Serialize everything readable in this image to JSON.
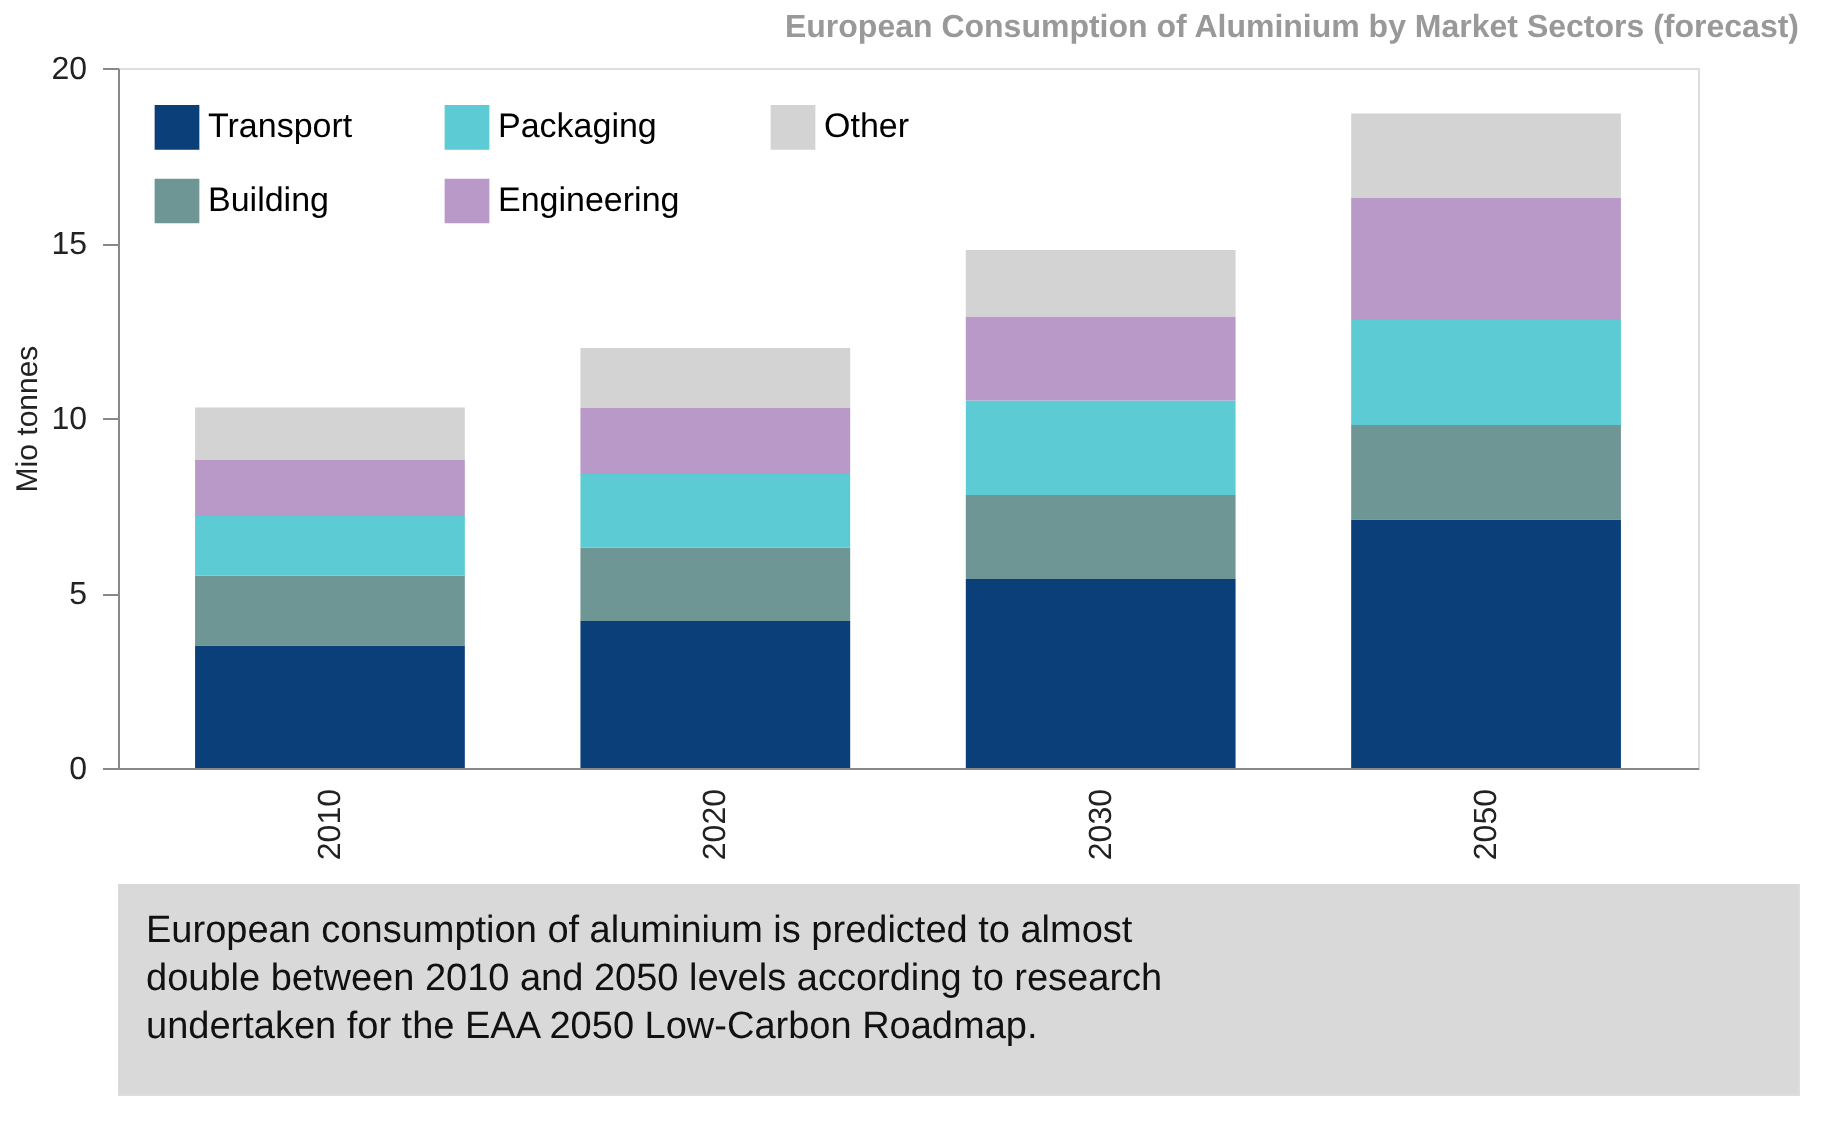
{
  "chart_data": {
    "type": "bar",
    "title": "European Consumption of Aluminium by Market Sectors (forecast)",
    "ylabel": "Mio tonnes",
    "categories": [
      "2010",
      "2020",
      "2030",
      "2050"
    ],
    "stacked": true,
    "series": [
      {
        "name": "Transport",
        "color": "#0b3f7a",
        "values": [
          3.5,
          4.2,
          5.4,
          7.1
        ]
      },
      {
        "name": "Building",
        "color": "#6e9694",
        "values": [
          2.0,
          2.1,
          2.4,
          2.7
        ]
      },
      {
        "name": "Packaging",
        "color": "#5ccbd3",
        "values": [
          1.7,
          2.1,
          2.7,
          3.0
        ]
      },
      {
        "name": "Engineering",
        "color": "#b899c8",
        "values": [
          1.6,
          1.9,
          2.4,
          3.5
        ]
      },
      {
        "name": "Other",
        "color": "#d3d3d3",
        "values": [
          1.5,
          1.7,
          1.9,
          2.4
        ]
      }
    ],
    "ylim": [
      0,
      20
    ],
    "yticks": [
      0,
      5,
      10,
      15,
      20
    ],
    "grid": false,
    "legend": "top left",
    "annotations": [
      "European consumption of aluminium is predicted to almost double between 2010 and 2050 levels according to research undertaken for the EAA 2050 Low-Carbon Roadmap."
    ]
  }
}
